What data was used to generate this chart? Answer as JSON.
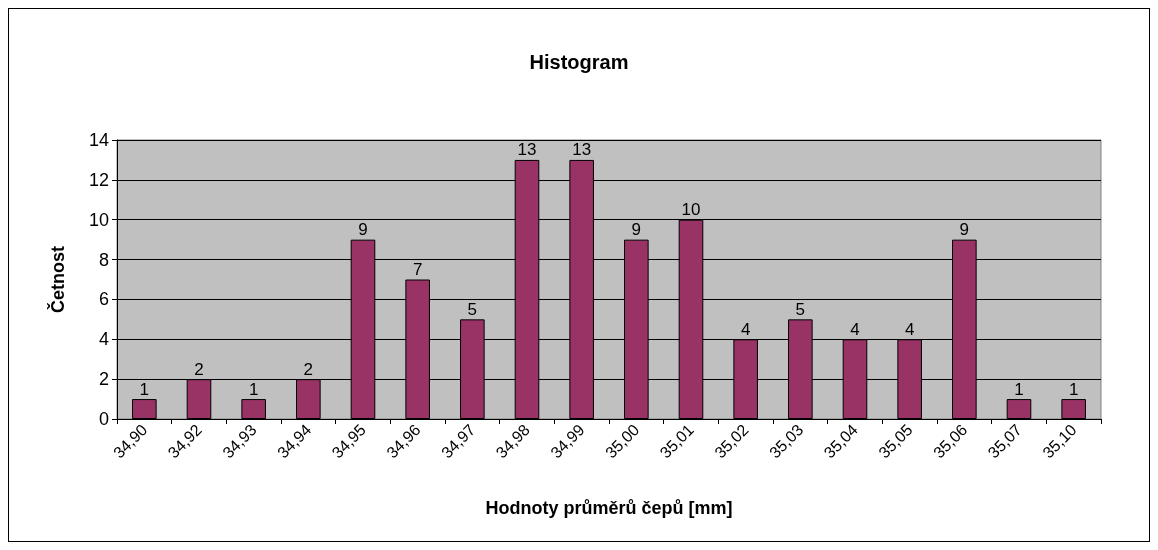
{
  "chart_data": {
    "type": "bar",
    "title": "Histogram",
    "xlabel": "Hodnoty průměrů čepů [mm]",
    "ylabel": "Četnost",
    "categories": [
      "34,90",
      "34,92",
      "34,93",
      "34,94",
      "34,95",
      "34,96",
      "34,97",
      "34,98",
      "34,99",
      "35,00",
      "35,01",
      "35,02",
      "35,03",
      "35,04",
      "35,05",
      "35,06",
      "35,07",
      "35,10"
    ],
    "values": [
      1,
      2,
      1,
      2,
      9,
      7,
      5,
      13,
      13,
      9,
      10,
      4,
      5,
      4,
      4,
      9,
      1,
      1
    ],
    "color": "#993366",
    "ylim": [
      0,
      14
    ],
    "yticks": [
      0,
      2,
      4,
      6,
      8,
      10,
      12,
      14
    ],
    "grid": "y",
    "data_labels": true
  }
}
